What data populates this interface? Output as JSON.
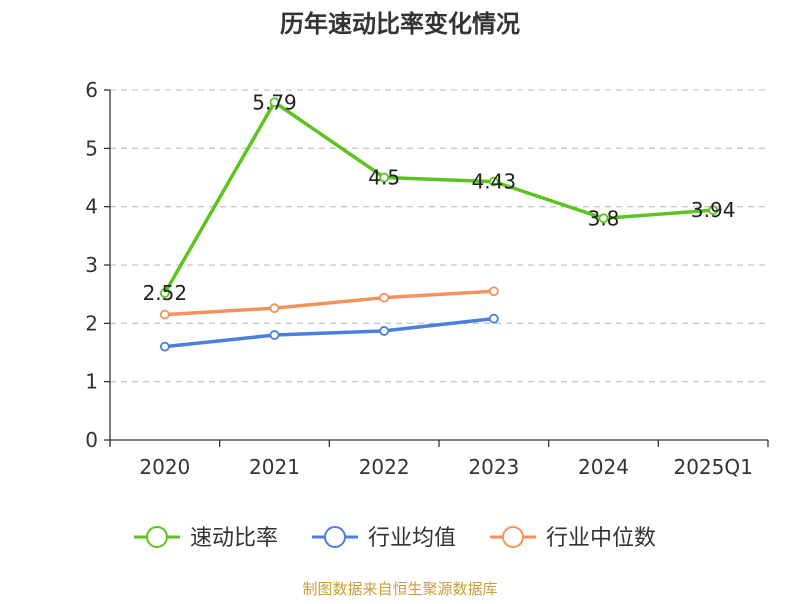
{
  "chart_data": {
    "type": "line",
    "title": "历年速动比率变化情况",
    "categories": [
      "2020",
      "2021",
      "2022",
      "2023",
      "2024",
      "2025Q1"
    ],
    "y_ticks": [
      "0",
      "1",
      "2",
      "3",
      "4",
      "5",
      "6"
    ],
    "ylim": [
      0,
      6
    ],
    "grid": true,
    "legend_position": "bottom",
    "series": [
      {
        "name": "速动比率",
        "color": "#5cc31f",
        "values": [
          2.52,
          5.79,
          4.5,
          4.43,
          3.8,
          3.94
        ],
        "labels": [
          "2.52",
          "5.79",
          "4.5",
          "4.43",
          "3.8",
          "3.94"
        ]
      },
      {
        "name": "行业均值",
        "color": "#4a7fdc",
        "values": [
          1.6,
          1.8,
          1.87,
          2.08,
          null,
          null
        ]
      },
      {
        "name": "行业中位数",
        "color": "#f5925c",
        "values": [
          2.15,
          2.26,
          2.44,
          2.55,
          null,
          null
        ]
      }
    ]
  },
  "footer": {
    "source": "制图数据来自恒生聚源数据库",
    "source_color": "#c8a039"
  }
}
